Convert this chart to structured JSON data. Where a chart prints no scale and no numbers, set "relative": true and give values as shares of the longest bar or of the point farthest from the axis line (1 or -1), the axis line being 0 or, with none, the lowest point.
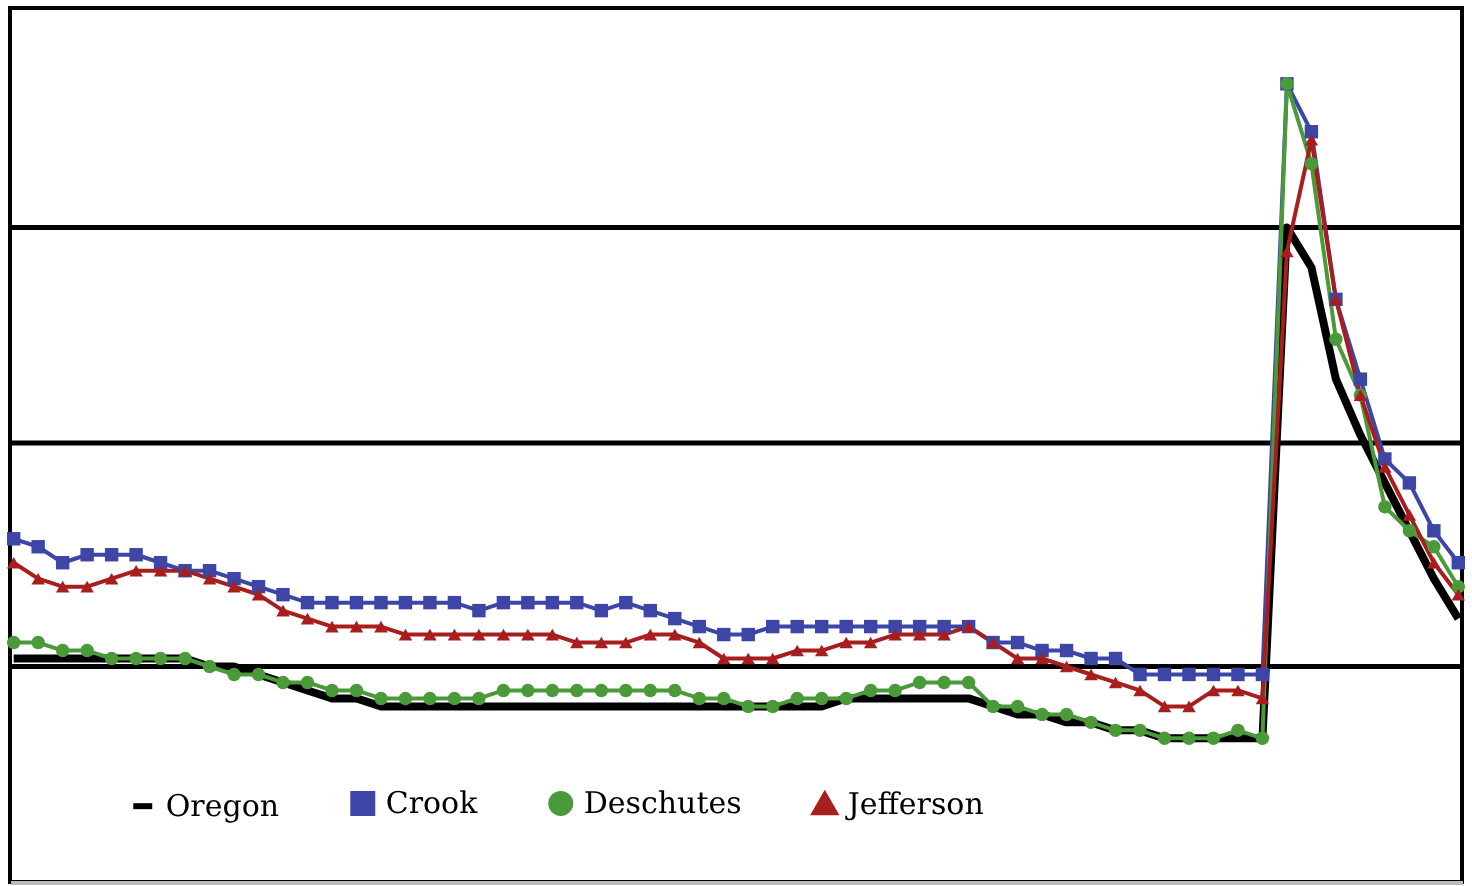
{
  "chart_data": {
    "type": "line",
    "relative": true,
    "legend": "bottom",
    "categories": [
      null,
      null,
      null,
      null,
      null,
      null,
      null,
      null,
      null,
      null,
      null,
      null,
      null,
      null,
      null,
      null,
      null,
      null,
      null,
      null,
      null,
      null,
      null,
      null,
      null,
      null,
      null,
      null,
      null,
      null,
      null,
      null,
      null,
      null,
      null,
      null,
      null,
      null,
      null,
      null,
      null,
      null,
      null,
      null,
      null,
      null,
      null,
      null,
      null,
      null,
      null,
      null,
      null,
      null,
      null,
      null,
      null,
      null,
      null,
      null
    ],
    "series": [
      {
        "name": "Oregon",
        "color": "#000000",
        "marker": "none",
        "values": [
          0.28,
          0.28,
          0.28,
          0.28,
          0.28,
          0.28,
          0.28,
          0.28,
          0.27,
          0.27,
          0.26,
          0.25,
          0.24,
          0.23,
          0.23,
          0.22,
          0.22,
          0.22,
          0.22,
          0.22,
          0.22,
          0.22,
          0.22,
          0.22,
          0.22,
          0.22,
          0.22,
          0.22,
          0.22,
          0.22,
          0.22,
          0.22,
          0.22,
          0.22,
          0.23,
          0.23,
          0.23,
          0.23,
          0.23,
          0.23,
          0.22,
          0.21,
          0.21,
          0.2,
          0.2,
          0.19,
          0.19,
          0.18,
          0.18,
          0.18,
          0.18,
          0.18,
          0.82,
          0.77,
          0.63,
          0.56,
          0.5,
          0.44,
          0.38,
          0.33
        ]
      },
      {
        "name": "Crook",
        "color": "#3d46a6",
        "marker": "square",
        "values": [
          0.43,
          0.42,
          0.4,
          0.41,
          0.41,
          0.41,
          0.4,
          0.39,
          0.39,
          0.38,
          0.37,
          0.36,
          0.35,
          0.35,
          0.35,
          0.35,
          0.35,
          0.35,
          0.35,
          0.34,
          0.35,
          0.35,
          0.35,
          0.35,
          0.34,
          0.35,
          0.34,
          0.33,
          0.32,
          0.31,
          0.31,
          0.32,
          0.32,
          0.32,
          0.32,
          0.32,
          0.32,
          0.32,
          0.32,
          0.32,
          0.3,
          0.3,
          0.29,
          0.29,
          0.28,
          0.28,
          0.26,
          0.26,
          0.26,
          0.26,
          0.26,
          0.26,
          1.0,
          0.94,
          0.73,
          0.63,
          0.53,
          0.5,
          0.44,
          0.4
        ]
      },
      {
        "name": "Deschutes",
        "color": "#4a9a3a",
        "marker": "circle",
        "values": [
          0.3,
          0.3,
          0.29,
          0.29,
          0.28,
          0.28,
          0.28,
          0.28,
          0.27,
          0.26,
          0.26,
          0.25,
          0.25,
          0.24,
          0.24,
          0.23,
          0.23,
          0.23,
          0.23,
          0.23,
          0.24,
          0.24,
          0.24,
          0.24,
          0.24,
          0.24,
          0.24,
          0.24,
          0.23,
          0.23,
          0.22,
          0.22,
          0.23,
          0.23,
          0.23,
          0.24,
          0.24,
          0.25,
          0.25,
          0.25,
          0.22,
          0.22,
          0.21,
          0.21,
          0.2,
          0.19,
          0.19,
          0.18,
          0.18,
          0.18,
          0.19,
          0.18,
          1.0,
          0.9,
          0.68,
          0.61,
          0.47,
          0.44,
          0.42,
          0.37
        ]
      },
      {
        "name": "Jefferson",
        "color": "#a81e1e",
        "marker": "triangle",
        "values": [
          0.4,
          0.38,
          0.37,
          0.37,
          0.38,
          0.39,
          0.39,
          0.39,
          0.38,
          0.37,
          0.36,
          0.34,
          0.33,
          0.32,
          0.32,
          0.32,
          0.31,
          0.31,
          0.31,
          0.31,
          0.31,
          0.31,
          0.31,
          0.3,
          0.3,
          0.3,
          0.31,
          0.31,
          0.3,
          0.28,
          0.28,
          0.28,
          0.29,
          0.29,
          0.3,
          0.3,
          0.31,
          0.31,
          0.31,
          0.32,
          0.3,
          0.28,
          0.28,
          0.27,
          0.26,
          0.25,
          0.24,
          0.22,
          0.22,
          0.24,
          0.24,
          0.23,
          0.79,
          0.93,
          0.73,
          0.61,
          0.52,
          0.46,
          0.4,
          0.36
        ]
      }
    ],
    "ref_lines": [
      {
        "axis": "y",
        "value": 0.27,
        "color": "#000000"
      },
      {
        "axis": "y",
        "value": 0.55,
        "color": "#000000"
      },
      {
        "axis": "y",
        "value": 0.82,
        "color": "#000000"
      }
    ]
  }
}
